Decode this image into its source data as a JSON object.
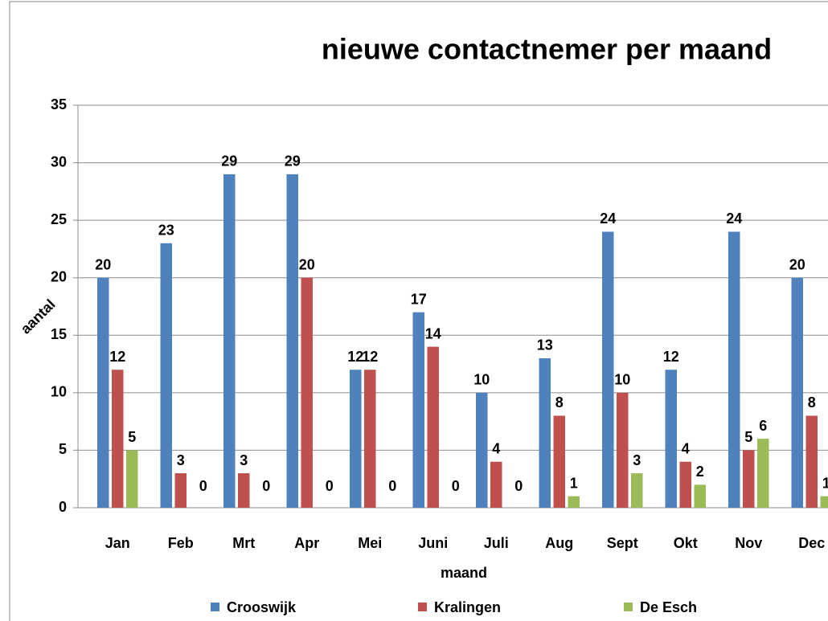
{
  "chart_data": {
    "type": "bar",
    "title": "nieuwe contactnemer per maand",
    "x_label": "maand",
    "y_label": "aantal",
    "categories": [
      "Jan",
      "Feb",
      "Mrt",
      "Apr",
      "Mei",
      "Juni",
      "Juli",
      "Aug",
      "Sept",
      "Okt",
      "Nov",
      "Dec"
    ],
    "series": [
      {
        "name": "Crooswijk",
        "color": "#4f81bd",
        "values": [
          20,
          23,
          29,
          29,
          12,
          17,
          10,
          13,
          24,
          12,
          24,
          20
        ]
      },
      {
        "name": "Kralingen",
        "color": "#c0504d",
        "values": [
          12,
          3,
          3,
          20,
          12,
          14,
          4,
          8,
          10,
          4,
          5,
          8
        ]
      },
      {
        "name": "De Esch",
        "color": "#9bbb59",
        "values": [
          5,
          0,
          0,
          0,
          0,
          0,
          0,
          1,
          3,
          2,
          6,
          1
        ]
      }
    ],
    "ylim": [
      0,
      35
    ],
    "yticks": [
      0,
      5,
      10,
      15,
      20,
      25,
      30,
      35
    ],
    "grid": true,
    "legend": "bottom"
  }
}
